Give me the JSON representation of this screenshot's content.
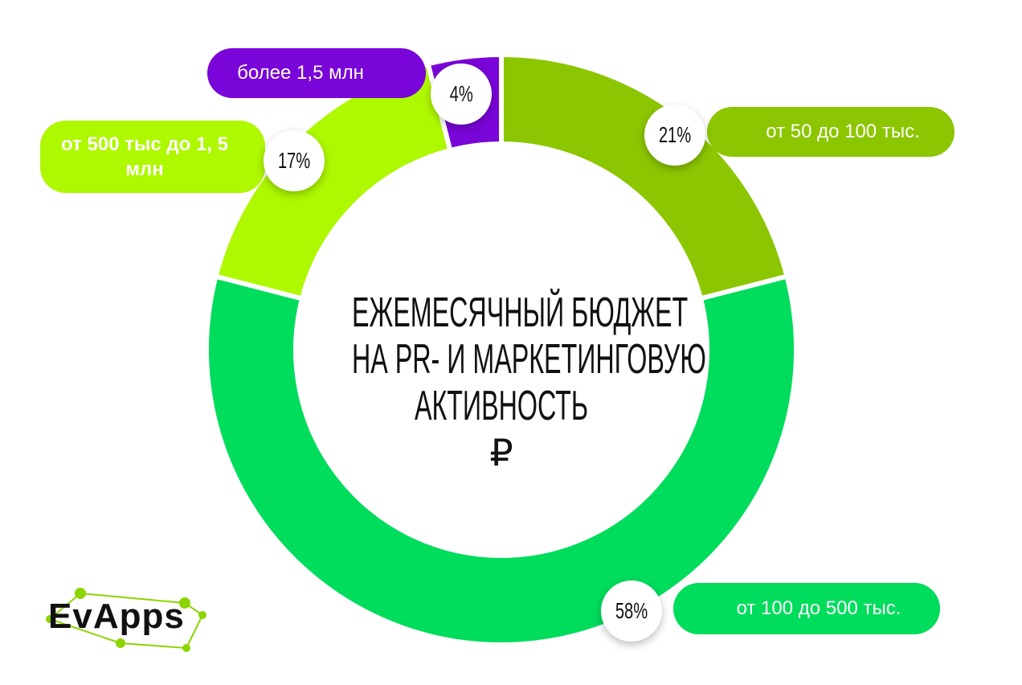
{
  "chart_data": {
    "type": "donut",
    "title": [
      "ЕЖЕМЕСЯЧНЫЙ БЮДЖЕТ",
      "НА PR- И МАРКЕТИНГОВУЮ",
      "АКТИВНОСТЬ"
    ],
    "currency": "₽",
    "categories": [
      "от 50 до 100 тыс.",
      "от 100 до 500 тыс.",
      "от 500 тыс до 1, 5 млн",
      "более 1,5 млн"
    ],
    "values": [
      21,
      58,
      17,
      4
    ],
    "value_labels": [
      "21%",
      "58%",
      "17%",
      "4%"
    ],
    "colors": [
      "#8cc600",
      "#00dc5c",
      "#aef800",
      "#7a05d8"
    ],
    "logo": "EvApps"
  }
}
